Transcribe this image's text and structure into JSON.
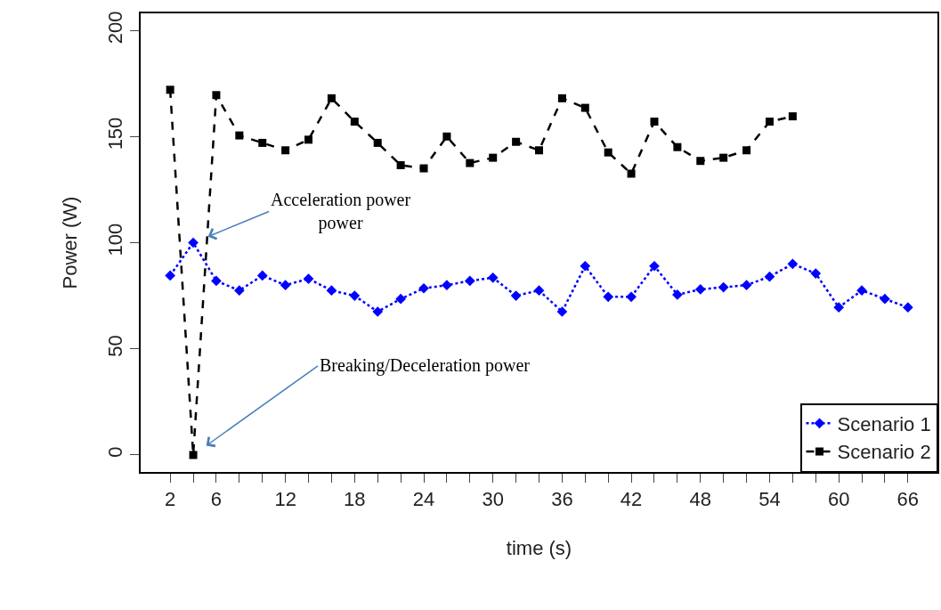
{
  "chart_data": {
    "type": "line",
    "xlabel": "time (s)",
    "ylabel": "Power (W)",
    "xlim": [
      -0.56,
      68.56
    ],
    "ylim": [
      -8,
      208
    ],
    "xticks": [
      2,
      {
        "value": 4,
        "label": null
      },
      6,
      {
        "value": 8,
        "label": null
      },
      {
        "value": 10,
        "label": null
      },
      12,
      {
        "value": 14,
        "label": null
      },
      {
        "value": 16,
        "label": null
      },
      18,
      {
        "value": 20,
        "label": null
      },
      {
        "value": 22,
        "label": null
      },
      24,
      {
        "value": 26,
        "label": null
      },
      {
        "value": 28,
        "label": null
      },
      30,
      {
        "value": 32,
        "label": null
      },
      {
        "value": 34,
        "label": null
      },
      36,
      {
        "value": 38,
        "label": null
      },
      {
        "value": 40,
        "label": null
      },
      42,
      {
        "value": 44,
        "label": null
      },
      {
        "value": 46,
        "label": null
      },
      48,
      {
        "value": 50,
        "label": null
      },
      {
        "value": 52,
        "label": null
      },
      54,
      {
        "value": 56,
        "label": null
      },
      {
        "value": 58,
        "label": null
      },
      60,
      {
        "value": 62,
        "label": null
      },
      {
        "value": 64,
        "label": null
      },
      66
    ],
    "yticks": [
      0,
      50,
      100,
      150,
      200
    ],
    "legend": "bottom right",
    "series": [
      {
        "name": "Scenario 1",
        "color": "#0000ff",
        "marker": "diamond",
        "line_style": "dotted",
        "x": [
          2,
          4,
          6,
          8,
          10,
          12,
          14,
          16,
          18,
          20,
          22,
          24,
          26,
          28,
          30,
          32,
          34,
          36,
          38,
          40,
          42,
          44,
          46,
          48,
          50,
          52,
          54,
          56,
          58,
          60,
          62,
          64,
          66
        ],
        "values": [
          84.5,
          100,
          82,
          77.5,
          84.5,
          80,
          83,
          77.5,
          75,
          67.5,
          73.5,
          78.5,
          80,
          82,
          83.5,
          75,
          77.5,
          67.5,
          89,
          74.5,
          74.5,
          89,
          75.5,
          78,
          79,
          80,
          84,
          90,
          85.5,
          69.5,
          77.5,
          73.5,
          69.5
        ]
      },
      {
        "name": "Scenario 2",
        "color": "#000000",
        "marker": "square",
        "line_style": "dashed",
        "x": [
          2,
          4,
          6,
          8,
          10,
          12,
          14,
          16,
          18,
          20,
          22,
          24,
          26,
          28,
          30,
          32,
          34,
          36,
          38,
          40,
          42,
          44,
          46,
          48,
          50,
          52,
          54,
          56
        ],
        "values": [
          172,
          0,
          169.5,
          150.5,
          147,
          143.5,
          148.5,
          168,
          157,
          147,
          136.5,
          135,
          150,
          137.5,
          140,
          147.5,
          143.5,
          168,
          163.5,
          142.5,
          132.5,
          157,
          145,
          138.5,
          140,
          143.5,
          157,
          159.5
        ]
      }
    ],
    "annotations": [
      {
        "text": "Acceleration power\npower",
        "x": 4,
        "y": 100
      },
      {
        "text": "Breaking/Deceleration power",
        "x": 4,
        "y": 0
      }
    ]
  }
}
